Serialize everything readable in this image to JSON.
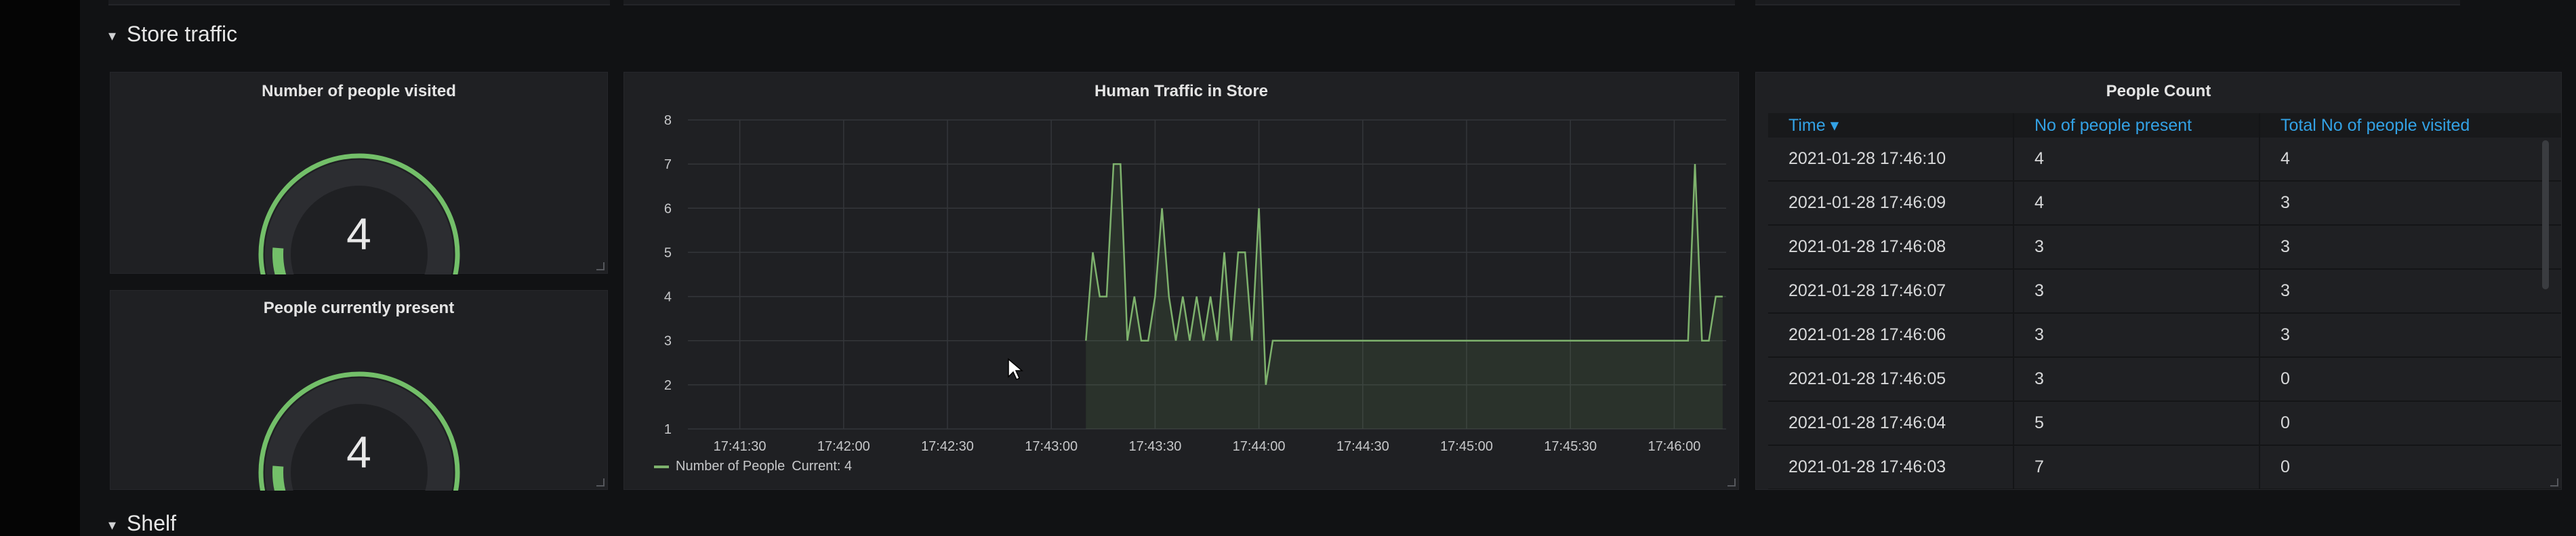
{
  "dashboard": {
    "rows": [
      {
        "title": "Store traffic"
      },
      {
        "title": "Shelf"
      }
    ]
  },
  "gauges": [
    {
      "title": "Number of people visited",
      "value": "4",
      "fraction": 0.15
    },
    {
      "title": "People currently present",
      "value": "4",
      "fraction": 0.15
    }
  ],
  "colors": {
    "gauge_fill": "#73bf69",
    "gauge_track": "#2c2d31",
    "series": "#7eb26d",
    "link": "#33a2e5"
  },
  "traffic": {
    "title": "Human Traffic in Store",
    "legend": "Number of People",
    "legend_current": "Current: 4"
  },
  "chart_data": {
    "type": "line",
    "title": "Human Traffic in Store",
    "xlabel": "",
    "ylabel": "",
    "ylim": [
      1,
      8
    ],
    "xlim": [
      "17:41:15",
      "17:46:15"
    ],
    "x_tick_labels": [
      "17:41:30",
      "17:42:00",
      "17:42:30",
      "17:43:00",
      "17:43:30",
      "17:44:00",
      "17:44:30",
      "17:45:00",
      "17:45:30",
      "17:46:00"
    ],
    "y_tick_labels": [
      "1",
      "2",
      "3",
      "4",
      "5",
      "6",
      "7",
      "8"
    ],
    "grid": true,
    "fill": true,
    "legend_position": "bottom-left",
    "series": [
      {
        "name": "Number of People",
        "x": [
          "17:43:10",
          "17:43:12",
          "17:43:14",
          "17:43:16",
          "17:43:18",
          "17:43:20",
          "17:43:22",
          "17:43:24",
          "17:43:26",
          "17:43:28",
          "17:43:30",
          "17:43:32",
          "17:43:34",
          "17:43:36",
          "17:43:38",
          "17:43:40",
          "17:43:42",
          "17:43:44",
          "17:43:46",
          "17:43:48",
          "17:43:50",
          "17:43:52",
          "17:43:54",
          "17:43:56",
          "17:43:58",
          "17:44:00",
          "17:44:02",
          "17:44:04",
          "17:44:06",
          "17:46:04",
          "17:46:06",
          "17:46:08",
          "17:46:10",
          "17:46:12",
          "17:46:14"
        ],
        "y": [
          3,
          5,
          4,
          4,
          7,
          7,
          3,
          4,
          3,
          3,
          4,
          6,
          4,
          3,
          4,
          3,
          4,
          3,
          4,
          3,
          5,
          3,
          5,
          5,
          3,
          6,
          2,
          3,
          3,
          3,
          7,
          3,
          3,
          4,
          4
        ]
      }
    ]
  },
  "people_count": {
    "title": "People Count",
    "columns": [
      "Time ▾",
      "No of people present",
      "Total No of people visited"
    ],
    "rows": [
      [
        "2021-01-28 17:46:10",
        "4",
        "4"
      ],
      [
        "2021-01-28 17:46:09",
        "4",
        "3"
      ],
      [
        "2021-01-28 17:46:08",
        "3",
        "3"
      ],
      [
        "2021-01-28 17:46:07",
        "3",
        "3"
      ],
      [
        "2021-01-28 17:46:06",
        "3",
        "3"
      ],
      [
        "2021-01-28 17:46:05",
        "3",
        "0"
      ],
      [
        "2021-01-28 17:46:04",
        "5",
        "0"
      ],
      [
        "2021-01-28 17:46:03",
        "7",
        "0"
      ]
    ]
  }
}
